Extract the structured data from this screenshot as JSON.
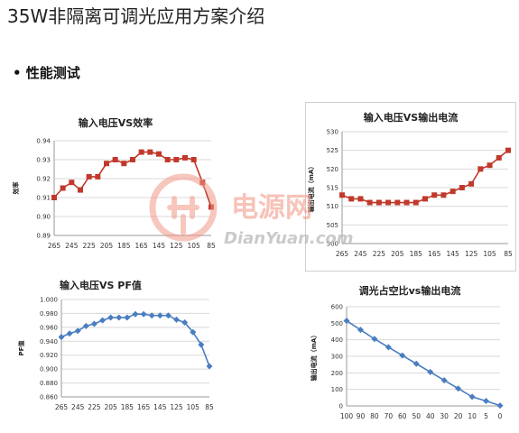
{
  "page": {
    "title": "35W非隔离可调光应用方案介绍",
    "section": "• 性能测试"
  },
  "watermark": {
    "text_cn": "电源网",
    "text_en": "DianYuan.com"
  },
  "colors": {
    "red_series": "#c0392b",
    "blue_series": "#4a7ec0",
    "grid": "#d9d9d9",
    "watermark": "#f29a8a"
  },
  "chart_data": [
    {
      "id": "efficiency",
      "type": "line",
      "title": "输入电压VS效率",
      "xlabel": "",
      "ylabel": "效率",
      "categories": [
        "265",
        "255",
        "245",
        "235",
        "225",
        "215",
        "205",
        "195",
        "185",
        "175",
        "165",
        "155",
        "145",
        "135",
        "125",
        "115",
        "105",
        "95",
        "85"
      ],
      "x_tick_labels": [
        "265",
        "245",
        "225",
        "205",
        "185",
        "165",
        "145",
        "125",
        "105",
        "85"
      ],
      "ylim": [
        0.89,
        0.94
      ],
      "yticks": [
        "0.89",
        "0.90",
        "0.91",
        "0.92",
        "0.93",
        "0.94"
      ],
      "series": [
        {
          "color": "#c0392b",
          "marker": "square",
          "values": [
            0.91,
            0.915,
            0.918,
            0.914,
            0.921,
            0.921,
            0.928,
            0.93,
            0.928,
            0.93,
            0.934,
            0.934,
            0.933,
            0.93,
            0.93,
            0.931,
            0.93,
            0.918,
            0.905
          ]
        }
      ],
      "grid": true,
      "grid_axis": "y"
    },
    {
      "id": "current",
      "type": "line",
      "title": "输入电压VS输出电流",
      "xlabel": "",
      "ylabel": "输出电流（mA）",
      "categories": [
        "265",
        "255",
        "245",
        "235",
        "225",
        "215",
        "205",
        "195",
        "185",
        "175",
        "165",
        "155",
        "145",
        "135",
        "125",
        "115",
        "105",
        "95",
        "85"
      ],
      "x_tick_labels": [
        "265",
        "245",
        "225",
        "205",
        "185",
        "165",
        "145",
        "125",
        "105",
        "85"
      ],
      "ylim": [
        500,
        530
      ],
      "yticks": [
        "500",
        "505",
        "510",
        "515",
        "520",
        "525",
        "530"
      ],
      "series": [
        {
          "color": "#c0392b",
          "marker": "square",
          "values": [
            513,
            512,
            512,
            511,
            511,
            511,
            511,
            511,
            511,
            512,
            513,
            513,
            514,
            515,
            516,
            520,
            521,
            523,
            525
          ]
        }
      ],
      "grid": true,
      "grid_axis": "y"
    },
    {
      "id": "pf",
      "type": "line",
      "title": "输入电压VS PF值",
      "xlabel": "",
      "ylabel": "PF值",
      "categories": [
        "265",
        "255",
        "245",
        "235",
        "225",
        "215",
        "205",
        "195",
        "185",
        "175",
        "165",
        "155",
        "145",
        "135",
        "125",
        "115",
        "105",
        "95",
        "85"
      ],
      "x_tick_labels": [
        "265",
        "245",
        "225",
        "205",
        "185",
        "165",
        "145",
        "125",
        "105",
        "85"
      ],
      "ylim": [
        0.86,
        1.0
      ],
      "yticks": [
        "0.860",
        "0.880",
        "0.900",
        "0.920",
        "0.940",
        "0.960",
        "0.980",
        "1.000"
      ],
      "series": [
        {
          "color": "#4a7ec0",
          "marker": "diamond",
          "values": [
            0.946,
            0.951,
            0.955,
            0.962,
            0.965,
            0.97,
            0.974,
            0.974,
            0.974,
            0.979,
            0.979,
            0.977,
            0.977,
            0.977,
            0.971,
            0.967,
            0.953,
            0.935,
            0.904
          ]
        }
      ],
      "grid": true,
      "grid_axis": "y"
    },
    {
      "id": "dimming",
      "type": "line",
      "title": "调光占空比vs输出电流",
      "xlabel": "",
      "ylabel": "输出电流（mA）",
      "categories": [
        "100",
        "90",
        "80",
        "70",
        "60",
        "50",
        "40",
        "30",
        "20",
        "10",
        "5",
        "0"
      ],
      "x_tick_labels": [
        "100",
        "90",
        "80",
        "70",
        "60",
        "50",
        "40",
        "30",
        "20",
        "10",
        "5",
        "0"
      ],
      "ylim": [
        0,
        600
      ],
      "yticks": [
        "0",
        "100",
        "200",
        "300",
        "400",
        "500",
        "600"
      ],
      "series": [
        {
          "color": "#4a7ec0",
          "marker": "diamond",
          "values": [
            515,
            460,
            405,
            355,
            305,
            255,
            205,
            155,
            105,
            55,
            30,
            2
          ]
        }
      ],
      "grid": true,
      "grid_axis": "y"
    }
  ]
}
